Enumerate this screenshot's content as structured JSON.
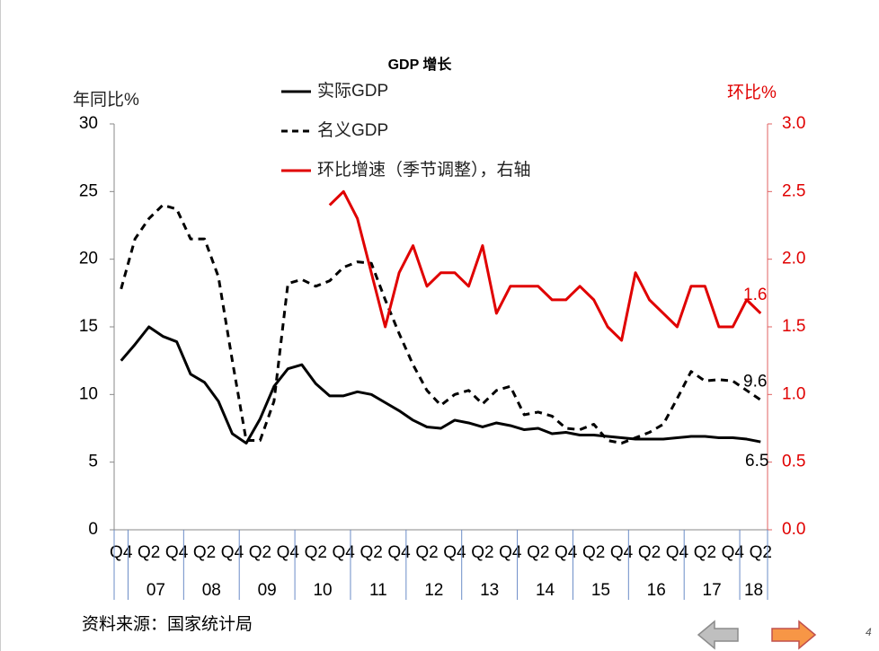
{
  "chart_data": {
    "type": "line",
    "title": "GDP 增长",
    "y_label": "年同比%",
    "y2_label": "环比%",
    "source": "资料来源：国家统计局",
    "page_number": "4",
    "categories": [
      "Q4",
      null,
      "Q2",
      null,
      "Q4",
      null,
      "Q2",
      null,
      "Q4",
      null,
      "Q2",
      null,
      "Q4",
      null,
      "Q2",
      null,
      "Q4",
      null,
      "Q2",
      null,
      "Q4",
      null,
      "Q2",
      null,
      "Q4",
      null,
      "Q2",
      null,
      "Q4",
      null,
      "Q2",
      null,
      "Q4",
      null,
      "Q2",
      null,
      "Q4",
      null,
      "Q2",
      null,
      "Q4",
      null,
      "Q2",
      null,
      "Q4",
      null,
      "Q2"
    ],
    "years": [
      "07",
      "08",
      "09",
      "10",
      "11",
      "12",
      "13",
      "14",
      "15",
      "16",
      "17",
      "18"
    ],
    "ylim": [
      0,
      30
    ],
    "yticks": [
      0,
      5,
      10,
      15,
      20,
      25,
      30
    ],
    "y2lim": [
      0,
      3
    ],
    "y2ticks": [
      {
        "value": 0,
        "label": "0.0"
      },
      0.5,
      {
        "value": 1,
        "label": "1.0"
      },
      1.5,
      {
        "value": 2,
        "label": "2.0"
      },
      2.5,
      {
        "value": 3,
        "label": "3.0"
      }
    ],
    "series": [
      {
        "name": "实际GDP",
        "color": "#000000",
        "dash": false,
        "values": [
          12.5,
          13.7,
          15.0,
          14.3,
          13.9,
          11.5,
          10.9,
          9.5,
          7.1,
          6.4,
          8.2,
          10.6,
          11.9,
          12.2,
          10.8,
          9.9,
          9.9,
          10.2,
          10.0,
          9.4,
          8.8,
          8.1,
          7.6,
          7.5,
          8.1,
          7.9,
          7.6,
          7.9,
          7.7,
          7.4,
          7.5,
          7.1,
          7.2,
          7.0,
          7.0,
          6.9,
          6.8,
          6.7,
          6.7,
          6.7,
          6.8,
          6.9,
          6.9,
          6.8,
          6.8,
          6.7,
          6.5
        ]
      },
      {
        "name": "名义GDP",
        "color": "#000000",
        "dash": true,
        "values": [
          17.8,
          21.5,
          23.0,
          24.0,
          23.7,
          21.5,
          21.5,
          18.7,
          12.5,
          6.6,
          6.6,
          9.5,
          18.2,
          18.5,
          18.0,
          18.4,
          19.4,
          19.8,
          19.7,
          17.0,
          14.5,
          12.2,
          10.3,
          9.2,
          10.0,
          10.3,
          9.3,
          10.3,
          10.6,
          8.5,
          8.7,
          8.4,
          7.5,
          7.4,
          7.8,
          6.6,
          6.4,
          6.8,
          7.2,
          7.8,
          9.7,
          11.7,
          11.0,
          11.1,
          11.0,
          10.3,
          9.6
        ]
      },
      {
        "name": "环比增速（季节调整），右轴",
        "color": "#e00000",
        "dash": false,
        "axis": "y2",
        "values": [
          null,
          null,
          null,
          null,
          null,
          null,
          null,
          null,
          null,
          null,
          null,
          null,
          null,
          null,
          null,
          2.4,
          2.5,
          2.3,
          1.9,
          1.5,
          1.9,
          2.1,
          1.8,
          1.9,
          1.9,
          1.8,
          2.1,
          1.6,
          1.8,
          1.8,
          1.8,
          1.7,
          1.7,
          1.8,
          1.7,
          1.5,
          1.4,
          1.9,
          1.7,
          1.6,
          1.5,
          1.8,
          1.8,
          1.5,
          1.5,
          1.7,
          1.6
        ]
      }
    ]
  }
}
